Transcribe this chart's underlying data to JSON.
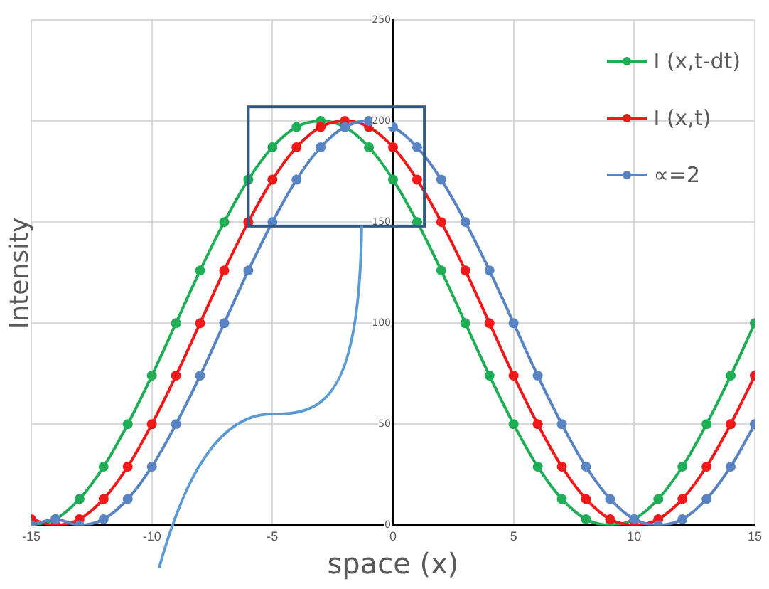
{
  "chart_data": {
    "type": "line",
    "xlabel": "space (x)",
    "ylabel": "Intensity",
    "x": [
      -15,
      -14,
      -13,
      -12,
      -11,
      -10,
      -9,
      -8,
      -7,
      -6,
      -5,
      -4,
      -3,
      -2,
      -1,
      0,
      1,
      2,
      3,
      4,
      5,
      6,
      7,
      8,
      9,
      10,
      11,
      12,
      13,
      14,
      15
    ],
    "series": [
      {
        "name": "I (x,t-dt)",
        "color": "#1fae55",
        "values": [
          0,
          3,
          13,
          29,
          50,
          74,
          100,
          126,
          150,
          171,
          187,
          197,
          200,
          197,
          187,
          171,
          150,
          126,
          100,
          74,
          50,
          29,
          13,
          3,
          0,
          3,
          13,
          29,
          50,
          74,
          100
        ]
      },
      {
        "name": "I (x,t)",
        "color": "#f01818",
        "values": [
          3,
          0,
          3,
          13,
          29,
          50,
          74,
          100,
          126,
          150,
          171,
          187,
          197,
          200,
          197,
          187,
          171,
          150,
          126,
          100,
          74,
          50,
          29,
          13,
          3,
          0,
          3,
          13,
          29,
          50,
          74
        ]
      },
      {
        "name": "∝=2",
        "color": "#5884c4",
        "values": [
          0,
          3,
          0,
          3,
          13,
          29,
          50,
          74,
          100,
          126,
          150,
          171,
          187,
          197,
          200,
          197,
          187,
          171,
          150,
          126,
          100,
          74,
          50,
          29,
          13,
          3,
          0,
          3,
          13,
          29,
          50
        ]
      }
    ],
    "xlim": [
      -15,
      15
    ],
    "xticks": [
      -15,
      -10,
      -5,
      0,
      5,
      10,
      15
    ],
    "ylim": [
      0,
      250
    ],
    "yticks": [
      0,
      50,
      100,
      150,
      200,
      250
    ],
    "grid": true,
    "legend": "top right",
    "marker": "circle",
    "line_style": "solid"
  }
}
